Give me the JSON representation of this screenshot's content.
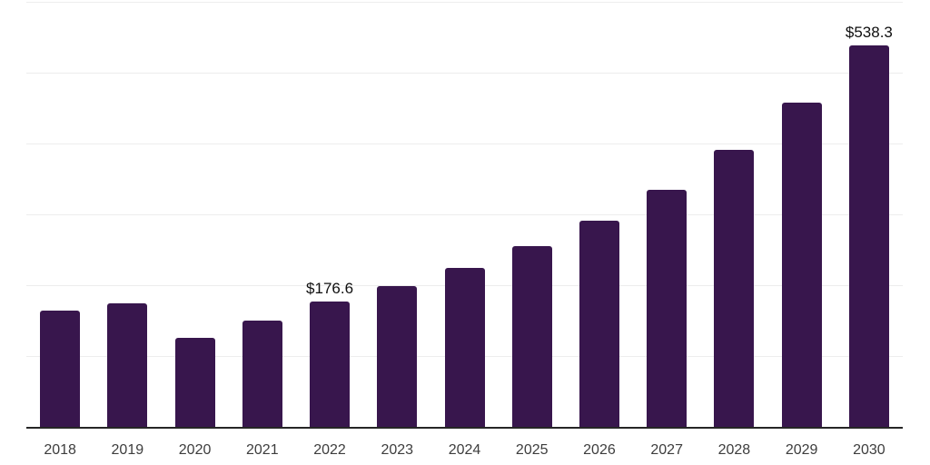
{
  "chart_data": {
    "type": "bar",
    "categories": [
      "2018",
      "2019",
      "2020",
      "2021",
      "2022",
      "2023",
      "2024",
      "2025",
      "2026",
      "2027",
      "2028",
      "2029",
      "2030"
    ],
    "values": [
      164.0,
      174.3,
      125.6,
      150.4,
      176.6,
      198.9,
      224.5,
      255.5,
      291.0,
      334.6,
      391.4,
      458.1,
      538.3
    ],
    "labeled_points": [
      {
        "category": "2022",
        "label": "$176.6"
      },
      {
        "category": "2030",
        "label": "$538.3"
      }
    ],
    "ylim": [
      0,
      600
    ],
    "ytick_interval": 100,
    "y_axis_labels_visible": false,
    "grid": "horizontal",
    "legend": "none",
    "colors": {
      "bar": "#38164D",
      "gridline": "#EDEDED",
      "axis_line": "#262626",
      "x_tick_label": "#3D3D3D",
      "point_label": "#0F0F0F",
      "background": "#FFFFFF"
    }
  }
}
